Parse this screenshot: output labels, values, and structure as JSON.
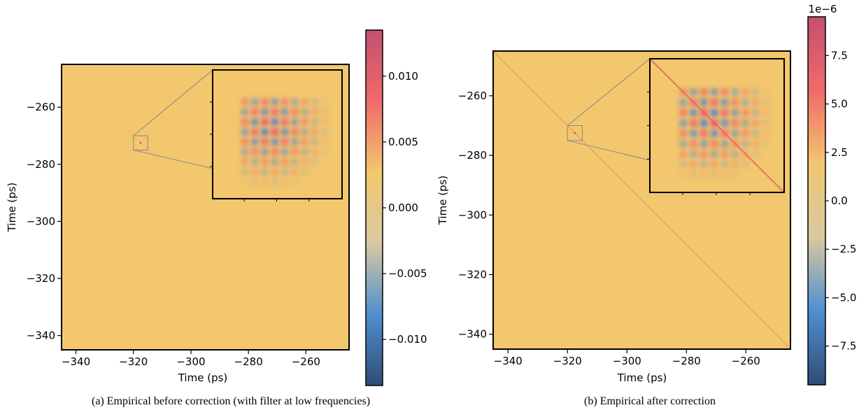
{
  "colors": {
    "background": "#f2c76e",
    "colormap": [
      "#2f4c74",
      "#4f8fd0",
      "#d8c9a0",
      "#f2c76e",
      "#f06a6a",
      "#c2506e"
    ],
    "frame": "#000000",
    "inset_connector": "#888888"
  },
  "chart_data": [
    {
      "type": "heatmap",
      "panel": "a",
      "caption": "(a) Empirical before correction (with filter at low frequencies)",
      "xlabel": "Time (ps)",
      "ylabel": "Time (ps)",
      "xlim": [
        -345,
        -245
      ],
      "ylim": [
        -345,
        -245
      ],
      "y_inverted": true,
      "xticks": [
        -340,
        -320,
        -300,
        -280,
        -260
      ],
      "yticks": [
        -260,
        -280,
        -300,
        -320,
        -340
      ],
      "xtick_labels": [
        "−340",
        "−320",
        "−300",
        "−280",
        "−260"
      ],
      "ytick_labels": [
        "−260",
        "−280",
        "−300",
        "−320",
        "−340"
      ],
      "diagonal_visible": false,
      "inset": {
        "region_x": [
          -320,
          -315
        ],
        "region_y": [
          -275,
          -270
        ]
      },
      "colorbar": {
        "range": [
          -0.0135,
          0.0135
        ],
        "scale_label": "",
        "ticks": [
          0.01,
          0.005,
          0.0,
          -0.005,
          -0.01
        ],
        "tick_labels": [
          "0.010",
          "0.005",
          "0.000",
          "−0.005",
          "−0.010"
        ]
      }
    },
    {
      "type": "heatmap",
      "panel": "b",
      "caption": "(b) Empirical after correction",
      "xlabel": "Time (ps)",
      "ylabel": "Time (ps)",
      "xlim": [
        -345,
        -245
      ],
      "ylim": [
        -345,
        -245
      ],
      "y_inverted": true,
      "xticks": [
        -340,
        -320,
        -300,
        -280,
        -260
      ],
      "yticks": [
        -260,
        -280,
        -300,
        -320,
        -340
      ],
      "xtick_labels": [
        "−340",
        "−320",
        "−300",
        "−280",
        "−260"
      ],
      "ytick_labels": [
        "−260",
        "−280",
        "−300",
        "−320",
        "−340"
      ],
      "diagonal_visible": true,
      "inset": {
        "region_x": [
          -320,
          -315
        ],
        "region_y": [
          -275,
          -270
        ]
      },
      "colorbar": {
        "range": [
          -9.5,
          9.5
        ],
        "scale_label": "1e−6",
        "ticks": [
          7.5,
          5.0,
          2.5,
          0.0,
          -2.5,
          -5.0,
          -7.5
        ],
        "tick_labels": [
          "7.5",
          "5.0",
          "2.5",
          "0.0",
          "−2.5",
          "−5.0",
          "−7.5"
        ]
      }
    }
  ]
}
